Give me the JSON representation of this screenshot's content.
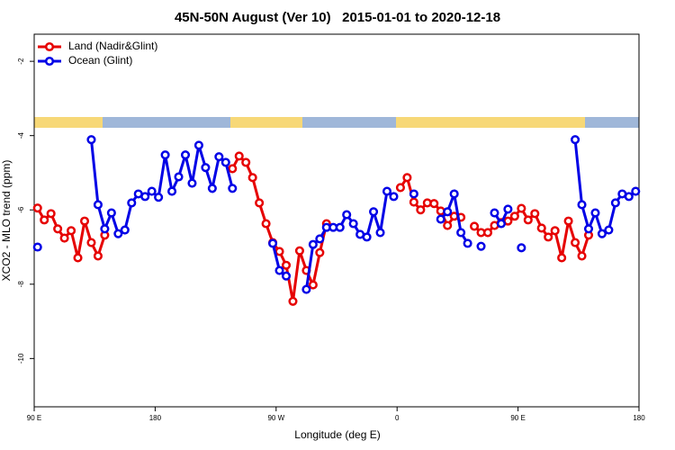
{
  "chart_data": {
    "type": "line",
    "title": "45N-50N August (Ver 10)   2015-01-01 to 2020-12-18",
    "x_label": "Longitude (deg E)",
    "y_label": "XCO2 - MLO trend (ppm)",
    "xlim": [
      90,
      540
    ],
    "ylim": [
      -11.3,
      -1.27
    ],
    "xticks": [
      {
        "value": 90,
        "label": "90 E"
      },
      180,
      {
        "value": 270,
        "label": "90 W"
      },
      {
        "value": 360,
        "label": "0"
      },
      {
        "value": 450,
        "label": "90 E"
      },
      {
        "value": 540,
        "label": "180"
      }
    ],
    "yticks": [
      -2,
      -4,
      -6,
      -8,
      -10
    ],
    "legend": "top-left",
    "x": [
      92.5,
      97.5,
      102.5,
      107.5,
      112.5,
      117.5,
      122.5,
      127.5,
      132.5,
      137.5,
      142.5,
      147.5,
      152.5,
      157.5,
      162.5,
      167.5,
      172.5,
      177.5,
      182.5,
      187.5,
      192.5,
      197.5,
      202.5,
      207.5,
      212.5,
      217.5,
      222.5,
      227.5,
      232.5,
      237.5,
      242.5,
      247.5,
      252.5,
      257.5,
      262.5,
      267.5,
      272.5,
      277.5,
      282.5,
      287.5,
      292.5,
      297.5,
      302.5,
      307.5,
      312.5,
      317.5,
      322.5,
      327.5,
      332.5,
      337.5,
      342.5,
      347.5,
      352.5,
      357.5,
      362.5,
      367.5,
      372.5,
      377.5,
      382.5,
      387.5,
      392.5,
      397.5,
      402.5,
      407.5,
      412.5,
      417.5,
      422.5,
      427.5,
      432.5,
      437.5,
      442.5,
      447.5,
      452.5,
      457.5,
      462.5,
      467.5,
      472.5,
      477.5,
      482.5,
      487.5,
      492.5,
      497.5,
      502.5,
      507.5,
      512.5,
      517.5,
      522.5,
      527.5,
      532.5,
      537.5
    ],
    "series": [
      {
        "name": "Land (Nadir&Glint)",
        "color": "#e60000",
        "values": [
          -5.95,
          -6.27,
          -6.1,
          -6.51,
          -6.76,
          -6.56,
          -7.29,
          -6.3,
          -6.88,
          -7.24,
          -6.68,
          null,
          null,
          null,
          null,
          null,
          null,
          null,
          null,
          null,
          null,
          null,
          null,
          null,
          null,
          null,
          null,
          null,
          null,
          -4.89,
          -4.55,
          -4.72,
          -5.13,
          -5.81,
          -6.37,
          -6.88,
          -7.12,
          -7.49,
          -8.46,
          -7.1,
          -7.63,
          -8.02,
          -7.15,
          -6.37,
          null,
          null,
          null,
          null,
          null,
          null,
          null,
          null,
          null,
          null,
          -5.4,
          -5.13,
          -5.79,
          -6.0,
          -5.81,
          -5.83,
          -6.03,
          -6.42,
          -6.17,
          -6.2,
          null,
          -6.44,
          -6.61,
          -6.61,
          -6.42,
          -6.34,
          -6.3,
          -6.17,
          -5.96,
          -6.27,
          -6.1,
          -6.49,
          -6.73,
          -6.56,
          -7.29,
          -6.3,
          -6.88,
          -7.24,
          -6.68,
          null,
          null,
          null,
          null,
          null,
          null,
          null
        ]
      },
      {
        "name": "Ocean (Glint)",
        "color": "#0000e6",
        "values": [
          -7.0,
          null,
          null,
          null,
          null,
          null,
          null,
          null,
          -4.11,
          -5.86,
          -6.51,
          -6.08,
          -6.64,
          -6.54,
          -5.81,
          -5.57,
          -5.64,
          -5.5,
          -5.66,
          -4.52,
          -5.5,
          -5.11,
          -4.52,
          -5.28,
          -4.26,
          -4.86,
          -5.42,
          -4.57,
          -4.72,
          -5.42,
          null,
          null,
          null,
          null,
          null,
          -6.9,
          -7.63,
          -7.78,
          null,
          null,
          -8.14,
          -6.93,
          -6.78,
          -6.47,
          -6.47,
          -6.47,
          -6.13,
          -6.37,
          -6.66,
          -6.73,
          -6.05,
          -6.61,
          -5.5,
          -5.64,
          null,
          null,
          -5.57,
          null,
          null,
          null,
          -6.25,
          -6.05,
          -5.57,
          -6.61,
          -6.9,
          null,
          -6.98,
          null,
          -6.08,
          -6.37,
          -5.98,
          null,
          -7.02,
          null,
          null,
          null,
          null,
          null,
          null,
          null,
          -4.11,
          -5.86,
          -6.51,
          -6.08,
          -6.64,
          -6.54,
          -5.81,
          -5.57,
          -5.64,
          -5.5
        ]
      }
    ]
  }
}
